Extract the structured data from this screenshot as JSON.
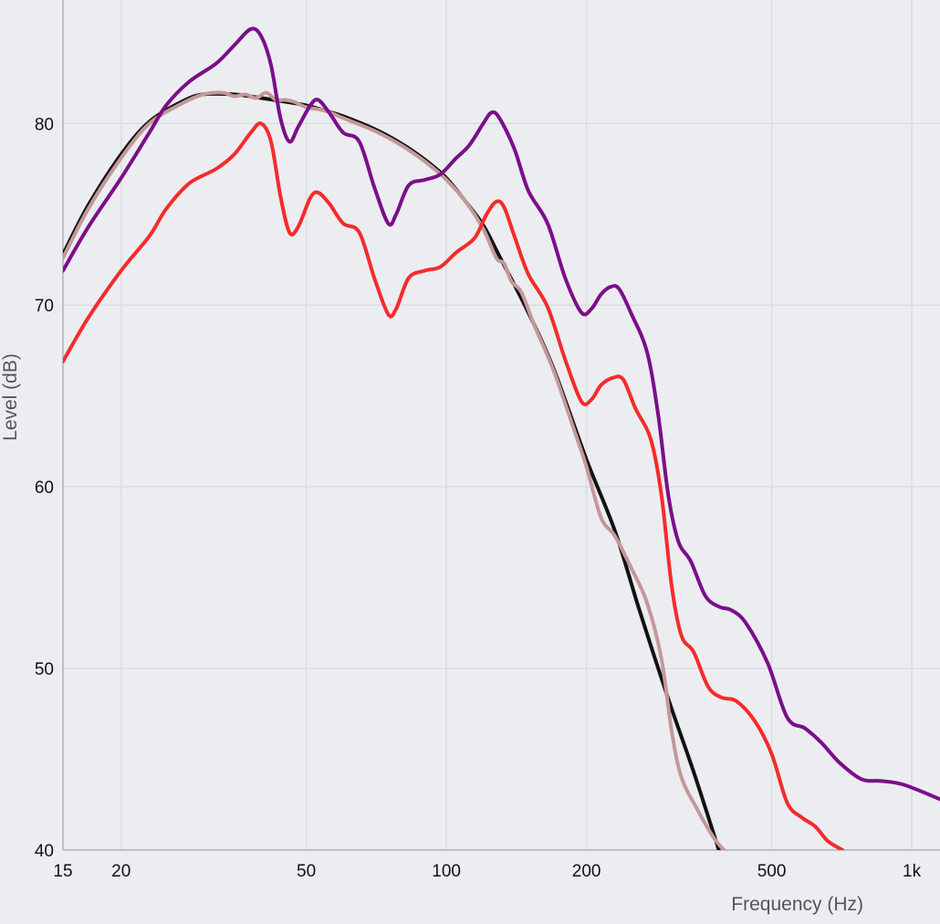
{
  "chart_data": {
    "type": "line",
    "title": "",
    "xlabel": "Frequency (Hz)",
    "ylabel": "Level (dB)",
    "x_scale": "log",
    "xlim": [
      15,
      1150
    ],
    "ylim": [
      40,
      86.8
    ],
    "grid": true,
    "x_ticks": [
      15,
      20,
      50,
      100,
      200,
      500,
      1000
    ],
    "x_tick_labels": [
      "15",
      "20",
      "50",
      "100",
      "200",
      "500",
      "1k"
    ],
    "y_ticks": [
      40,
      50,
      60,
      70,
      80
    ],
    "y_tick_labels": [
      "40",
      "50",
      "60",
      "70",
      "80"
    ],
    "series": [
      {
        "color": "#111111",
        "points": [
          [
            15,
            72.8
          ],
          [
            17,
            75.5
          ],
          [
            20,
            78.3
          ],
          [
            23,
            80.1
          ],
          [
            27,
            81.2
          ],
          [
            30,
            81.6
          ],
          [
            35,
            81.6
          ],
          [
            40,
            81.4
          ],
          [
            45,
            81.2
          ],
          [
            50,
            81.0
          ],
          [
            55,
            80.7
          ],
          [
            60,
            80.4
          ],
          [
            70,
            79.7
          ],
          [
            80,
            78.9
          ],
          [
            90,
            78.0
          ],
          [
            100,
            77.0
          ],
          [
            110,
            75.7
          ],
          [
            120,
            74.4
          ],
          [
            130,
            72.7
          ],
          [
            150,
            69.6
          ],
          [
            170,
            66.5
          ],
          [
            200,
            61.5
          ],
          [
            230,
            57.6
          ],
          [
            260,
            53.2
          ],
          [
            300,
            48.3
          ],
          [
            340,
            44.3
          ],
          [
            385,
            40.0
          ]
        ]
      },
      {
        "color": "#c4989a",
        "points": [
          [
            15,
            72.6
          ],
          [
            17,
            75.3
          ],
          [
            20,
            78.1
          ],
          [
            23,
            80.0
          ],
          [
            27,
            81.1
          ],
          [
            30,
            81.6
          ],
          [
            33,
            81.7
          ],
          [
            35,
            81.5
          ],
          [
            37,
            81.6
          ],
          [
            39,
            81.4
          ],
          [
            41,
            81.7
          ],
          [
            43,
            81.3
          ],
          [
            45,
            81.3
          ],
          [
            47,
            81.2
          ],
          [
            50,
            80.9
          ],
          [
            55,
            80.7
          ],
          [
            60,
            80.3
          ],
          [
            70,
            79.6
          ],
          [
            80,
            78.8
          ],
          [
            90,
            77.9
          ],
          [
            100,
            76.9
          ],
          [
            110,
            75.7
          ],
          [
            120,
            74.2
          ],
          [
            128,
            72.6
          ],
          [
            133,
            72.3
          ],
          [
            138,
            71.3
          ],
          [
            145,
            70.7
          ],
          [
            155,
            68.8
          ],
          [
            170,
            66.4
          ],
          [
            190,
            62.8
          ],
          [
            200,
            61.1
          ],
          [
            215,
            58.3
          ],
          [
            230,
            57.3
          ],
          [
            250,
            55.5
          ],
          [
            270,
            53.6
          ],
          [
            290,
            50.5
          ],
          [
            305,
            46.5
          ],
          [
            320,
            44.0
          ],
          [
            345,
            42.3
          ],
          [
            375,
            40.7
          ],
          [
            395,
            40.0
          ]
        ]
      },
      {
        "color": "#7b0e8a",
        "points": [
          [
            15,
            71.9
          ],
          [
            17,
            74.3
          ],
          [
            20,
            77.0
          ],
          [
            23,
            79.5
          ],
          [
            25,
            81.0
          ],
          [
            28,
            82.3
          ],
          [
            32,
            83.3
          ],
          [
            35,
            84.3
          ],
          [
            38,
            85.2
          ],
          [
            40,
            84.8
          ],
          [
            42,
            83.2
          ],
          [
            44,
            80.3
          ],
          [
            46,
            79.0
          ],
          [
            48,
            79.8
          ],
          [
            51,
            81.0
          ],
          [
            53,
            81.3
          ],
          [
            56,
            80.6
          ],
          [
            60,
            79.5
          ],
          [
            65,
            79.0
          ],
          [
            70,
            76.5
          ],
          [
            75,
            74.5
          ],
          [
            78,
            75.0
          ],
          [
            83,
            76.6
          ],
          [
            90,
            76.9
          ],
          [
            97,
            77.2
          ],
          [
            105,
            78.1
          ],
          [
            112,
            78.8
          ],
          [
            120,
            80.0
          ],
          [
            125,
            80.6
          ],
          [
            130,
            80.3
          ],
          [
            140,
            78.6
          ],
          [
            150,
            76.3
          ],
          [
            165,
            74.5
          ],
          [
            180,
            71.5
          ],
          [
            195,
            69.6
          ],
          [
            205,
            69.8
          ],
          [
            215,
            70.6
          ],
          [
            225,
            71.0
          ],
          [
            235,
            70.9
          ],
          [
            250,
            69.5
          ],
          [
            270,
            67.4
          ],
          [
            285,
            64.0
          ],
          [
            300,
            59.5
          ],
          [
            315,
            57.0
          ],
          [
            335,
            55.9
          ],
          [
            360,
            54.0
          ],
          [
            385,
            53.4
          ],
          [
            410,
            53.2
          ],
          [
            440,
            52.5
          ],
          [
            490,
            50.3
          ],
          [
            540,
            47.3
          ],
          [
            590,
            46.7
          ],
          [
            640,
            45.9
          ],
          [
            700,
            44.8
          ],
          [
            780,
            43.9
          ],
          [
            860,
            43.8
          ],
          [
            960,
            43.6
          ],
          [
            1150,
            42.8
          ]
        ]
      },
      {
        "color": "#f52b2b",
        "points": [
          [
            15,
            66.9
          ],
          [
            17,
            69.3
          ],
          [
            20,
            71.9
          ],
          [
            23,
            73.8
          ],
          [
            25,
            75.3
          ],
          [
            28,
            76.7
          ],
          [
            32,
            77.5
          ],
          [
            35,
            78.3
          ],
          [
            38,
            79.5
          ],
          [
            40,
            80.0
          ],
          [
            42,
            79.0
          ],
          [
            44,
            76.0
          ],
          [
            46,
            74.0
          ],
          [
            48,
            74.3
          ],
          [
            51,
            75.9
          ],
          [
            53,
            76.2
          ],
          [
            56,
            75.6
          ],
          [
            60,
            74.5
          ],
          [
            65,
            74.0
          ],
          [
            70,
            71.5
          ],
          [
            75,
            69.5
          ],
          [
            78,
            69.8
          ],
          [
            83,
            71.5
          ],
          [
            90,
            71.9
          ],
          [
            97,
            72.1
          ],
          [
            105,
            72.9
          ],
          [
            115,
            73.7
          ],
          [
            122,
            75.0
          ],
          [
            128,
            75.7
          ],
          [
            133,
            75.4
          ],
          [
            140,
            73.8
          ],
          [
            150,
            71.7
          ],
          [
            165,
            69.9
          ],
          [
            180,
            67.0
          ],
          [
            195,
            64.7
          ],
          [
            205,
            64.8
          ],
          [
            215,
            65.6
          ],
          [
            228,
            66.0
          ],
          [
            240,
            65.9
          ],
          [
            255,
            64.3
          ],
          [
            275,
            62.6
          ],
          [
            290,
            59.5
          ],
          [
            305,
            54.5
          ],
          [
            320,
            51.8
          ],
          [
            340,
            50.9
          ],
          [
            365,
            49.0
          ],
          [
            390,
            48.4
          ],
          [
            420,
            48.2
          ],
          [
            460,
            47.1
          ],
          [
            500,
            45.3
          ],
          [
            540,
            42.6
          ],
          [
            580,
            41.8
          ],
          [
            620,
            41.3
          ],
          [
            660,
            40.5
          ],
          [
            710,
            40.0
          ]
        ]
      }
    ]
  }
}
